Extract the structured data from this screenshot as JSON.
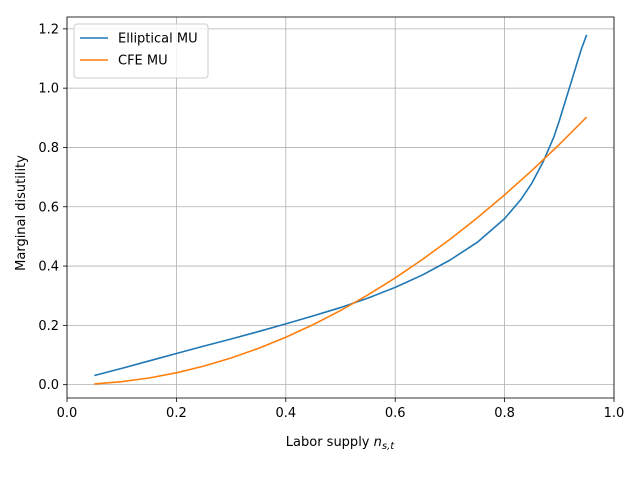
{
  "chart_data": {
    "type": "line",
    "title": "",
    "xlabel": "Labor supply ",
    "xlabel_math": "n",
    "xlabel_sub": "s,t",
    "ylabel": "Marginal disutility",
    "xlim": [
      0.0,
      1.0
    ],
    "ylim": [
      -0.045,
      1.24
    ],
    "xticks": [
      0.0,
      0.2,
      0.4,
      0.6,
      0.8,
      1.0
    ],
    "xtick_labels": [
      "0.0",
      "0.2",
      "0.4",
      "0.6",
      "0.8",
      "1.0"
    ],
    "yticks": [
      0.0,
      0.2,
      0.4,
      0.6,
      0.8,
      1.0,
      1.2
    ],
    "ytick_labels": [
      "0.0",
      "0.2",
      "0.4",
      "0.6",
      "0.8",
      "1.0",
      "1.2"
    ],
    "grid": true,
    "legend_position": "top-left",
    "series": [
      {
        "name": "Elliptical MU",
        "color": "#1f77b4",
        "x": [
          0.05,
          0.1,
          0.15,
          0.2,
          0.25,
          0.3,
          0.35,
          0.4,
          0.45,
          0.5,
          0.55,
          0.6,
          0.65,
          0.7,
          0.75,
          0.8,
          0.83,
          0.85,
          0.87,
          0.89,
          0.9,
          0.91,
          0.92,
          0.93,
          0.94,
          0.95
        ],
        "y": [
          0.031,
          0.055,
          0.08,
          0.105,
          0.13,
          0.154,
          0.179,
          0.205,
          0.232,
          0.26,
          0.292,
          0.328,
          0.37,
          0.42,
          0.48,
          0.56,
          0.625,
          0.68,
          0.75,
          0.835,
          0.89,
          0.95,
          1.01,
          1.07,
          1.13,
          1.18
        ]
      },
      {
        "name": "CFE MU",
        "color": "#ff7f0e",
        "x": [
          0.05,
          0.1,
          0.15,
          0.2,
          0.25,
          0.3,
          0.35,
          0.4,
          0.45,
          0.5,
          0.55,
          0.6,
          0.65,
          0.7,
          0.75,
          0.8,
          0.85,
          0.9,
          0.95
        ],
        "y": [
          0.0025,
          0.01,
          0.0225,
          0.04,
          0.0625,
          0.09,
          0.1225,
          0.16,
          0.2025,
          0.25,
          0.3025,
          0.36,
          0.4225,
          0.49,
          0.5625,
          0.64,
          0.7225,
          0.81,
          0.9025
        ]
      }
    ]
  }
}
